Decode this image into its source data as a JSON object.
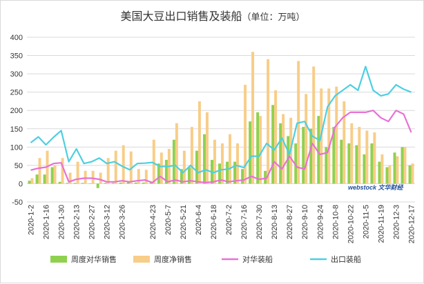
{
  "chart_data": {
    "type": "bar",
    "title": "美国大豆出口销售及装船（单位：万吨）",
    "title_main": "美国大豆出口销售及装船",
    "title_unit": "（单位：万吨）",
    "ylim": [
      -50,
      400
    ],
    "yticks": [
      400,
      350,
      300,
      250,
      200,
      150,
      100,
      50,
      0,
      -50
    ],
    "grid": true,
    "legend_position": "bottom",
    "watermark": "webstock 文华财经",
    "categories": [
      "2020-1-2",
      "2020-1-9",
      "2020-1-16",
      "2020-1-23",
      "2020-1-30",
      "2020-2-6",
      "2020-2-13",
      "2020-2-20",
      "2020-2-27",
      "2020-3-5",
      "2020-3-12",
      "2020-3-19",
      "2020-3-26",
      "2020-4-2",
      "2020-4-9",
      "2020-4-16",
      "2020-4-23",
      "2020-4-30",
      "2020-5-7",
      "2020-5-14",
      "2020-5-21",
      "2020-5-28",
      "2020-6-4",
      "2020-6-11",
      "2020-6-18",
      "2020-6-25",
      "2020-7-2",
      "2020-7-9",
      "2020-7-16",
      "2020-7-23",
      "2020-7-30",
      "2020-8-6",
      "2020-8-13",
      "2020-8-20",
      "2020-8-27",
      "2020-9-3",
      "2020-9-10",
      "2020-9-17",
      "2020-9-24",
      "2020-10-1",
      "2020-10-8",
      "2020-10-15",
      "2020-10-22",
      "2020-10-29",
      "2020-11-5",
      "2020-11-12",
      "2020-11-19",
      "2020-11-26",
      "2020-12-3",
      "2020-12-10",
      "2020-12-17"
    ],
    "xtick_labels": [
      "2020-1-2",
      "2020-1-16",
      "2020-1-30",
      "2020-2-13",
      "2020-2-27",
      "2020-3-12",
      "2020-3-26",
      "2020-4-23",
      "2020-5-7",
      "2020-5-21",
      "2020-6-4",
      "2020-6-18",
      "2020-7-2",
      "2020-7-16",
      "2020-7-30",
      "2020-8-13",
      "2020-8-27",
      "2020-9-10",
      "2020-9-24",
      "2020-10-8",
      "2020-10-22",
      "2020-11-5",
      "2020-11-19",
      "2020-12-3",
      "2020-12-17"
    ],
    "series": [
      {
        "name": "周度对华销售",
        "kind": "bar",
        "color": "#8fd14f",
        "values": [
          8,
          25,
          25,
          45,
          5,
          2,
          2,
          2,
          1,
          -12,
          2,
          2,
          3,
          5,
          3,
          3,
          5,
          55,
          65,
          120,
          40,
          45,
          90,
          135,
          65,
          55,
          60,
          60,
          40,
          170,
          195,
          35,
          215,
          165,
          130,
          110,
          155,
          150,
          185,
          100,
          155,
          120,
          110,
          105,
          80,
          110,
          60,
          45,
          85,
          100,
          50
        ]
      },
      {
        "name": "周度净销售",
        "kind": "bar",
        "color": "#f8cd88",
        "values": [
          15,
          70,
          90,
          50,
          70,
          30,
          60,
          35,
          35,
          30,
          70,
          90,
          105,
          88,
          40,
          38,
          120,
          85,
          95,
          165,
          90,
          155,
          225,
          195,
          120,
          110,
          135,
          110,
          270,
          360,
          185,
          340,
          255,
          190,
          180,
          335,
          245,
          320,
          260,
          260,
          265,
          225,
          165,
          155,
          145,
          140,
          80,
          50,
          75,
          100,
          55
        ]
      },
      {
        "name": "对华装船",
        "kind": "line",
        "color": "#e870d6",
        "values": [
          37,
          42,
          45,
          55,
          57,
          5,
          12,
          15,
          15,
          12,
          5,
          5,
          8,
          5,
          8,
          10,
          3,
          20,
          5,
          10,
          5,
          8,
          5,
          3,
          5,
          10,
          5,
          8,
          10,
          20,
          12,
          15,
          60,
          40,
          75,
          45,
          40,
          110,
          80,
          85,
          155,
          180,
          195,
          195,
          195,
          200,
          180,
          170,
          200,
          190,
          140
        ]
      },
      {
        "name": "出口装船",
        "kind": "line",
        "color": "#4ccfe0",
        "values": [
          112,
          128,
          106,
          127,
          145,
          60,
          95,
          55,
          60,
          70,
          55,
          60,
          48,
          38,
          55,
          56,
          58,
          47,
          47,
          50,
          30,
          50,
          30,
          38,
          30,
          38,
          40,
          50,
          44,
          75,
          75,
          110,
          92,
          125,
          80,
          165,
          170,
          130,
          118,
          210,
          240,
          255,
          270,
          255,
          320,
          255,
          240,
          245,
          270,
          258,
          250
        ]
      }
    ]
  }
}
